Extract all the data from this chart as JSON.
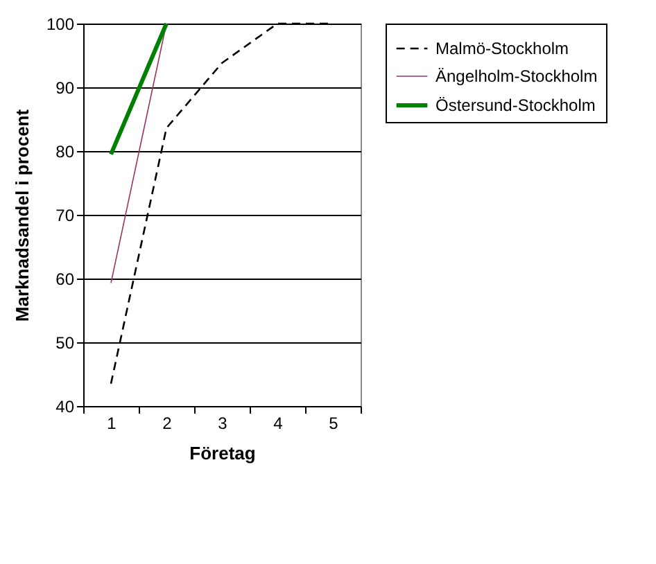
{
  "chart_data": {
    "type": "line",
    "xlabel": "Företag",
    "ylabel": "Marknadsandel i procent",
    "categories": [
      "1",
      "2",
      "3",
      "4",
      "5"
    ],
    "ylim": [
      40,
      100
    ],
    "yticks": [
      40,
      50,
      60,
      70,
      80,
      90,
      100
    ],
    "grid": "y",
    "legend": "right",
    "marker": "none",
    "series": [
      {
        "name": "Malmö-Stockholm",
        "color": "#000000",
        "line_style": "dashed",
        "values": [
          43.5,
          83.6,
          93.8,
          100,
          100
        ]
      },
      {
        "name": "Ängelholm-Stockholm",
        "color": "#993366",
        "line_style": "solid",
        "values": [
          59.3,
          100,
          null,
          null,
          null
        ]
      },
      {
        "name": "Östersund-Stockholm",
        "color": "#008000",
        "line_style": "solid",
        "values": [
          79.5,
          100,
          null,
          null,
          null
        ]
      }
    ]
  }
}
